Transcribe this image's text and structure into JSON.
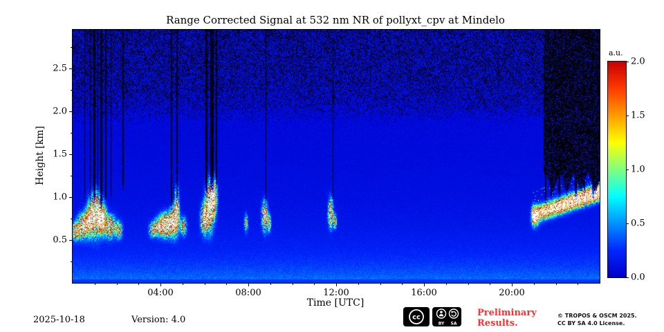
{
  "chart_data": {
    "type": "heatmap",
    "title": "Range Corrected Signal at 532 nm NR of pollyxt_cpv at Mindelo",
    "xlabel": "Time [UTC]",
    "ylabel": "Height [km]",
    "x_range_hours": [
      0,
      24
    ],
    "y_range_km": [
      0,
      2.95
    ],
    "x_ticks": [
      {
        "hour": 4,
        "label": "04:00"
      },
      {
        "hour": 8,
        "label": "08:00"
      },
      {
        "hour": 12,
        "label": "12:00"
      },
      {
        "hour": 16,
        "label": "16:00"
      },
      {
        "hour": 20,
        "label": "20:00"
      }
    ],
    "x_minor_step_hours": 1,
    "y_ticks": [
      {
        "km": 0.5,
        "label": "0.5"
      },
      {
        "km": 1.0,
        "label": "1.0"
      },
      {
        "km": 1.5,
        "label": "1.5"
      },
      {
        "km": 2.0,
        "label": "2.0"
      },
      {
        "km": 2.5,
        "label": "2.5"
      }
    ],
    "y_minor_step_km": 0.25,
    "colorbar": {
      "label": "a.u.",
      "min": 0,
      "max": 2,
      "ticks": [
        {
          "v": 0.0,
          "label": "0.0"
        },
        {
          "v": 0.5,
          "label": "0.5"
        },
        {
          "v": 1.0,
          "label": "1.0"
        },
        {
          "v": 1.5,
          "label": "1.5"
        },
        {
          "v": 2.0,
          "label": "2.0"
        }
      ]
    },
    "colormap_stops": [
      [
        0.0,
        [
          0,
          0,
          205
        ]
      ],
      [
        0.125,
        [
          0,
          40,
          255
        ]
      ],
      [
        0.375,
        [
          0,
          255,
          255
        ]
      ],
      [
        0.625,
        [
          255,
          255,
          0
        ]
      ],
      [
        0.875,
        [
          255,
          60,
          0
        ]
      ],
      [
        1.0,
        [
          200,
          0,
          0
        ]
      ]
    ],
    "background": {
      "surface_amp": 0.3,
      "surface_scale_km": 0.32,
      "mol_amp": 0.14,
      "mol_scale_km": 2.0,
      "noise_base": 0.035,
      "noise_top": 0.26,
      "noise_start_km": 1.5,
      "noise_full_km": 2.6
    },
    "aerosol_blobs": [
      {
        "t": 0.15,
        "dt": 0.12,
        "h": 0.6,
        "dh": 0.06,
        "i": 2.0
      },
      {
        "t": 0.45,
        "dt": 0.15,
        "h": 0.66,
        "dh": 0.08,
        "i": 2.6
      },
      {
        "t": 0.75,
        "dt": 0.12,
        "h": 0.72,
        "dh": 0.1,
        "i": 2.4
      },
      {
        "t": 1.05,
        "dt": 0.18,
        "h": 0.8,
        "dh": 0.14,
        "i": 3.2
      },
      {
        "t": 1.35,
        "dt": 0.12,
        "h": 0.74,
        "dh": 0.1,
        "i": 2.6
      },
      {
        "t": 1.7,
        "dt": 0.15,
        "h": 0.66,
        "dh": 0.08,
        "i": 2.2
      },
      {
        "t": 2.1,
        "dt": 0.1,
        "h": 0.62,
        "dh": 0.06,
        "i": 1.6
      },
      {
        "t": 3.65,
        "dt": 0.1,
        "h": 0.62,
        "dh": 0.05,
        "i": 1.8
      },
      {
        "t": 3.95,
        "dt": 0.15,
        "h": 0.65,
        "dh": 0.06,
        "i": 2.2
      },
      {
        "t": 4.3,
        "dt": 0.2,
        "h": 0.68,
        "dh": 0.08,
        "i": 2.8
      },
      {
        "t": 4.65,
        "dt": 0.12,
        "h": 0.72,
        "dh": 0.1,
        "i": 3.0
      },
      {
        "t": 4.75,
        "dt": 0.06,
        "h": 0.92,
        "dh": 0.12,
        "i": 2.0
      },
      {
        "t": 5.05,
        "dt": 0.08,
        "h": 0.66,
        "dh": 0.06,
        "i": 1.8
      },
      {
        "t": 6.0,
        "dt": 0.1,
        "h": 0.75,
        "dh": 0.1,
        "i": 2.6
      },
      {
        "t": 6.25,
        "dt": 0.12,
        "h": 0.9,
        "dh": 0.16,
        "i": 3.2
      },
      {
        "t": 6.45,
        "dt": 0.08,
        "h": 1.0,
        "dh": 0.12,
        "i": 2.4
      },
      {
        "t": 7.9,
        "dt": 0.05,
        "h": 0.7,
        "dh": 0.06,
        "i": 1.4
      },
      {
        "t": 8.75,
        "dt": 0.08,
        "h": 0.78,
        "dh": 0.1,
        "i": 2.4
      },
      {
        "t": 8.95,
        "dt": 0.05,
        "h": 0.7,
        "dh": 0.06,
        "i": 1.6
      },
      {
        "t": 11.75,
        "dt": 0.07,
        "h": 0.82,
        "dh": 0.1,
        "i": 2.2
      },
      {
        "t": 11.95,
        "dt": 0.05,
        "h": 0.72,
        "dh": 0.05,
        "i": 1.5
      },
      {
        "t": 21.05,
        "dt": 0.1,
        "h": 0.78,
        "dh": 0.07,
        "i": 2.2
      }
    ],
    "night_layer": {
      "t_start": 20.9,
      "t_end": 24,
      "h_start": 0.78,
      "h_end": 1.06,
      "sigma": 0.055,
      "i": 3.0
    },
    "cloud_gaps": [
      {
        "t": 0.55,
        "w": 0.06,
        "h_bottom": 0.95
      },
      {
        "t": 0.8,
        "w": 0.05,
        "h_bottom": 0.9
      },
      {
        "t": 1.0,
        "w": 0.08,
        "h_bottom": 0.95
      },
      {
        "t": 1.15,
        "w": 0.05,
        "h_bottom": 1.0
      },
      {
        "t": 1.3,
        "w": 0.09,
        "h_bottom": 0.9
      },
      {
        "t": 1.5,
        "w": 0.06,
        "h_bottom": 0.95
      },
      {
        "t": 1.75,
        "w": 0.05,
        "h_bottom": 1.0
      },
      {
        "t": 2.3,
        "w": 0.04,
        "h_bottom": 1.1
      },
      {
        "t": 4.5,
        "w": 0.07,
        "h_bottom": 0.9
      },
      {
        "t": 4.75,
        "w": 0.06,
        "h_bottom": 0.95
      },
      {
        "t": 6.1,
        "w": 0.1,
        "h_bottom": 1.05
      },
      {
        "t": 6.35,
        "w": 0.14,
        "h_bottom": 1.1
      },
      {
        "t": 6.55,
        "w": 0.05,
        "h_bottom": 1.15
      },
      {
        "t": 8.8,
        "w": 0.05,
        "h_bottom": 0.95
      },
      {
        "t": 11.85,
        "w": 0.04,
        "h_bottom": 1.0
      },
      {
        "t": 21.55,
        "w": 0.08,
        "h_bottom": 0.95
      },
      {
        "t": 21.8,
        "w": 0.06,
        "h_bottom": 1.0
      },
      {
        "t": 22.15,
        "w": 0.08,
        "h_bottom": 1.0
      },
      {
        "t": 22.5,
        "w": 0.06,
        "h_bottom": 1.05
      },
      {
        "t": 22.9,
        "w": 0.09,
        "h_bottom": 1.0
      },
      {
        "t": 23.3,
        "w": 0.07,
        "h_bottom": 1.05
      },
      {
        "t": 23.7,
        "w": 0.08,
        "h_bottom": 1.0
      }
    ],
    "dark_block": {
      "t_start": 21.45,
      "t_end": 24,
      "h_bottom": 1.18
    }
  },
  "footer": {
    "date": "2025-10-18",
    "version": "Version: 4.0",
    "preliminary": [
      "Preliminary",
      "Results."
    ],
    "copyright": [
      "© TROPOS & OSCM 2025.",
      "CC BY SA 4.0 License."
    ],
    "license_badge": {
      "cc": "cc",
      "by": "BY",
      "sa": "SA"
    }
  },
  "colors": {
    "preliminary_red": "#ff3030",
    "plot_background_blue": "#0020e0",
    "axis": "#000000"
  }
}
